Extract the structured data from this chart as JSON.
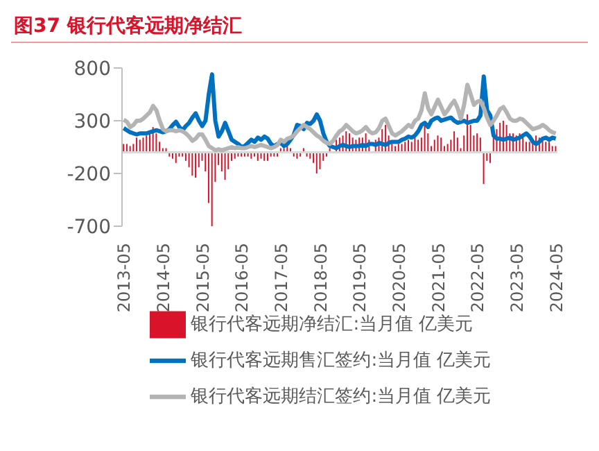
{
  "chart_data": {
    "type": "bar",
    "title": "图37  银行代客远期净结汇",
    "categories": [
      "2013-05",
      null,
      null,
      null,
      null,
      null,
      null,
      null,
      null,
      null,
      null,
      null,
      "2014-05",
      null,
      null,
      null,
      null,
      null,
      null,
      null,
      null,
      null,
      null,
      null,
      "2015-05",
      null,
      null,
      null,
      null,
      null,
      null,
      null,
      null,
      null,
      null,
      null,
      "2016-05",
      null,
      null,
      null,
      null,
      null,
      null,
      null,
      null,
      null,
      null,
      null,
      "2017-05",
      null,
      null,
      null,
      null,
      null,
      null,
      null,
      null,
      null,
      null,
      null,
      "2018-05",
      null,
      null,
      null,
      null,
      null,
      null,
      null,
      null,
      null,
      null,
      null,
      "2019-05",
      null,
      null,
      null,
      null,
      null,
      null,
      null,
      null,
      null,
      null,
      null,
      "2020-05",
      null,
      null,
      null,
      null,
      null,
      null,
      null,
      null,
      null,
      null,
      null,
      "2021-05",
      null,
      null,
      null,
      null,
      null,
      null,
      null,
      null,
      null,
      null,
      null,
      "2022-05",
      null,
      null,
      null,
      null,
      null,
      null,
      null,
      null,
      null,
      null,
      null,
      "2023-05",
      null,
      null,
      null,
      null,
      null,
      null,
      null,
      null,
      null,
      null,
      null,
      "2024-05"
    ],
    "series": [
      {
        "name": "银行代客远期净结汇:当月值 亿美元",
        "color": "#d9142a",
        "values": [
          80,
          80,
          60,
          80,
          140,
          120,
          140,
          160,
          180,
          240,
          180,
          100,
          40,
          40,
          -40,
          -60,
          -100,
          -40,
          -40,
          -80,
          -140,
          -220,
          -240,
          -140,
          -80,
          -180,
          -480,
          -700,
          -280,
          -120,
          -180,
          -260,
          -160,
          -80,
          -60,
          -40,
          -40,
          -40,
          -40,
          -60,
          -40,
          -80,
          -60,
          -80,
          -80,
          -40,
          -40,
          -40,
          40,
          40,
          60,
          40,
          -40,
          -60,
          -40,
          40,
          -40,
          -60,
          -100,
          -200,
          -160,
          -80,
          -40,
          40,
          null,
          120,
          140,
          160,
          200,
          180,
          140,
          120,
          140,
          140,
          180,
          120,
          null,
          120,
          140,
          220,
          260,
          160,
          80,
          60,
          80,
          80,
          100,
          120,
          100,
          140,
          120,
          140,
          280,
          180,
          60,
          120,
          160,
          140,
          60,
          80,
          120,
          200,
          140,
          40,
          160,
          360,
          260,
          160,
          180,
          140,
          -300,
          -80,
          -100,
          140,
          220,
          280,
          300,
          260,
          180,
          180,
          160,
          180,
          160,
          100,
          100,
          120,
          160,
          140,
          120,
          100,
          100,
          60,
          60
        ]
      },
      {
        "name": "银行代客远期售汇签约:当月值 亿美元",
        "type": "line",
        "color": "#0070c0",
        "values": [
          230,
          210,
          190,
          180,
          170,
          180,
          180,
          180,
          190,
          200,
          210,
          200,
          190,
          200,
          220,
          260,
          290,
          240,
          210,
          250,
          280,
          330,
          370,
          300,
          250,
          300,
          550,
          740,
          300,
          150,
          200,
          280,
          200,
          120,
          100,
          80,
          50,
          60,
          90,
          120,
          100,
          140,
          120,
          150,
          130,
          80,
          60,
          80,
          90,
          60,
          80,
          120,
          170,
          260,
          250,
          220,
          280,
          270,
          300,
          360,
          300,
          180,
          100,
          60,
          50,
          40,
          60,
          70,
          60,
          50,
          60,
          60,
          60,
          70,
          60,
          80,
          80,
          70,
          90,
          80,
          70,
          90,
          100,
          100,
          100,
          120,
          130,
          150,
          140,
          160,
          200,
          260,
          280,
          240,
          300,
          320,
          330,
          300,
          310,
          320,
          330,
          300,
          280,
          290,
          300,
          280,
          290,
          300,
          300,
          350,
          720,
          400,
          350,
          160,
          130,
          130,
          120,
          130,
          140,
          120,
          130,
          140,
          160,
          180,
          150,
          100,
          80,
          100,
          130,
          140,
          120,
          140,
          130
        ]
      },
      {
        "name": "银行代客远期结汇签约:当月值 亿美元",
        "type": "line",
        "color": "#b4b4b4",
        "values": [
          310,
          290,
          240,
          260,
          300,
          300,
          320,
          350,
          380,
          440,
          400,
          300,
          220,
          200,
          210,
          210,
          200,
          210,
          200,
          180,
          150,
          110,
          130,
          170,
          170,
          120,
          60,
          40,
          20,
          30,
          20,
          30,
          40,
          50,
          40,
          50,
          40,
          40,
          50,
          60,
          50,
          60,
          70,
          60,
          50,
          40,
          50,
          70,
          120,
          100,
          130,
          140,
          160,
          200,
          230,
          260,
          240,
          220,
          190,
          160,
          140,
          110,
          90,
          80,
          110,
          160,
          200,
          220,
          260,
          230,
          200,
          180,
          190,
          210,
          240,
          200,
          180,
          190,
          230,
          300,
          320,
          250,
          180,
          160,
          180,
          200,
          230,
          260,
          240,
          300,
          320,
          400,
          560,
          420,
          360,
          430,
          500,
          430,
          360,
          400,
          450,
          490,
          420,
          320,
          450,
          640,
          550,
          450,
          480,
          490,
          420,
          330,
          260,
          300,
          350,
          410,
          430,
          380,
          320,
          300,
          300,
          320,
          310,
          280,
          250,
          220,
          230,
          240,
          260,
          240,
          210,
          190,
          180
        ]
      }
    ],
    "ylim": [
      -700,
      800
    ],
    "yticks": [
      -700,
      -200,
      300,
      800
    ],
    "ref_lines": [
      {
        "axis": "y",
        "value": 0,
        "color": "#d9d9d9"
      }
    ],
    "legend": "bottom"
  }
}
